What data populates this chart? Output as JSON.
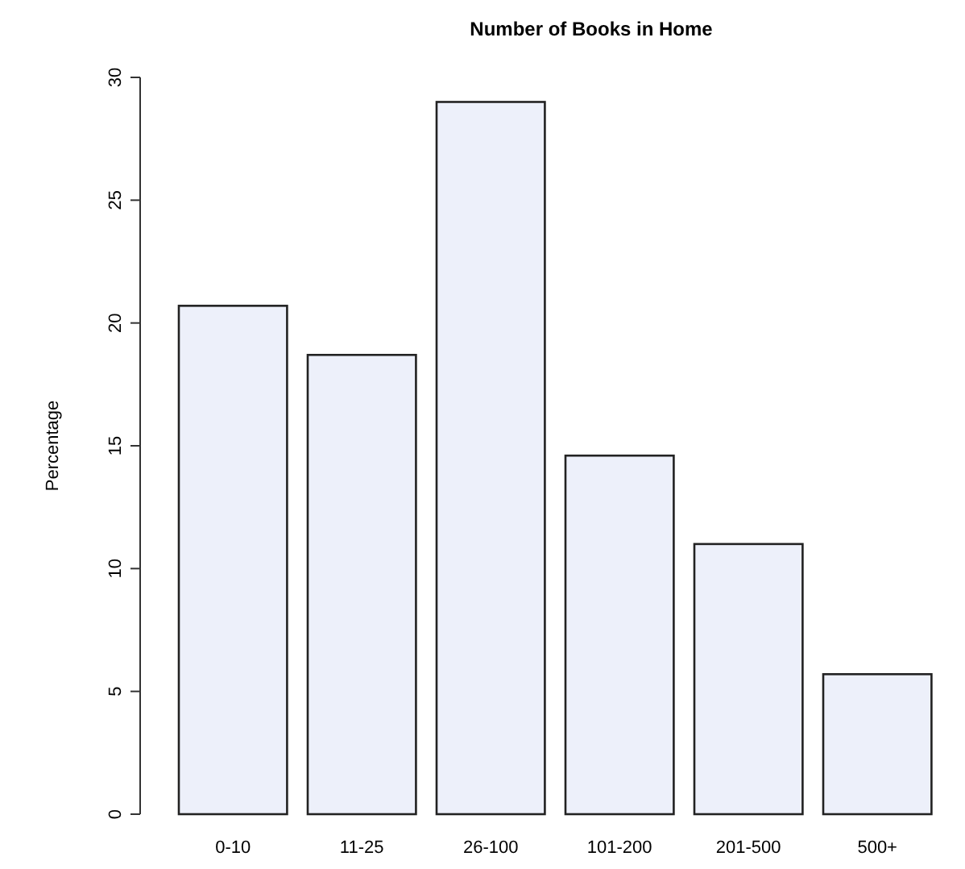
{
  "chart_data": {
    "type": "bar",
    "title": "Number of Books in Home",
    "ylabel": "Percentage",
    "categories": [
      "0-10",
      "11-25",
      "26-100",
      "101-200",
      "201-500",
      "500+"
    ],
    "values": [
      20.7,
      18.7,
      29,
      14.6,
      11,
      5.7
    ],
    "color": "#edf0fa",
    "ylim": [
      0,
      30
    ],
    "yticks": [
      0,
      5,
      10,
      15,
      20,
      25,
      30
    ],
    "grid": false
  }
}
